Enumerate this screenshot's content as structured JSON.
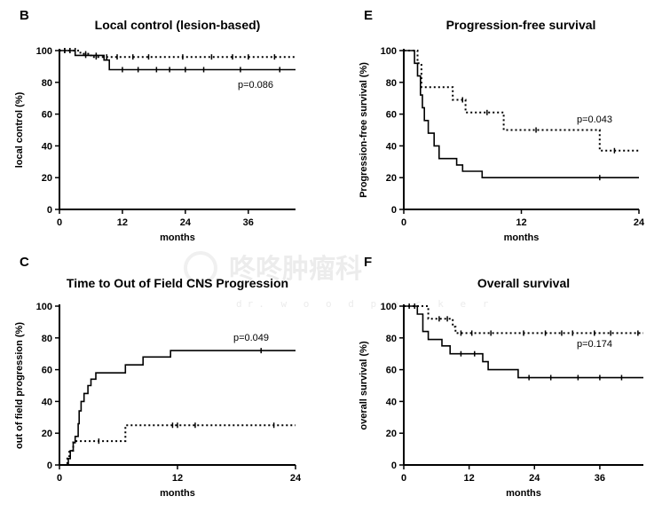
{
  "watermark": {
    "text": "咚咚肿瘤科",
    "sub": "dr. w o o d p e c k e r"
  },
  "chart_data": [
    {
      "type": "line",
      "style": "kaplan-meier",
      "letter": "B",
      "title": "Local control (lesion-based)",
      "xlabel": "months",
      "ylabel": "local control (%)",
      "xlim": [
        0,
        45
      ],
      "ylim": [
        0,
        100
      ],
      "xticks": [
        0,
        12,
        24,
        36
      ],
      "yticks": [
        0,
        20,
        40,
        60,
        80,
        100
      ],
      "pvalue": "p=0.086",
      "series": [
        {
          "dash": "solid",
          "steps": [
            [
              0,
              100
            ],
            [
              3,
              97
            ],
            [
              8.5,
              94
            ],
            [
              9.5,
              88
            ],
            [
              45,
              88
            ]
          ],
          "censors": [
            [
              1,
              100
            ],
            [
              2,
              100
            ],
            [
              5,
              97
            ],
            [
              7,
              97
            ],
            [
              12,
              88
            ],
            [
              15,
              88
            ],
            [
              18.5,
              88
            ],
            [
              21,
              88
            ],
            [
              24,
              88
            ],
            [
              27.5,
              88
            ],
            [
              34.5,
              88
            ],
            [
              42,
              88
            ]
          ]
        },
        {
          "dash": "dotted",
          "steps": [
            [
              0,
              100
            ],
            [
              4,
              98
            ],
            [
              6,
              96
            ],
            [
              45,
              96
            ]
          ],
          "censors": [
            [
              1,
              100
            ],
            [
              2,
              100
            ],
            [
              3,
              100
            ],
            [
              5,
              98
            ],
            [
              7,
              96
            ],
            [
              9,
              96
            ],
            [
              11,
              96
            ],
            [
              14,
              96
            ],
            [
              17,
              96
            ],
            [
              23.5,
              96
            ],
            [
              29,
              96
            ],
            [
              33,
              96
            ],
            [
              36,
              96
            ],
            [
              41,
              96
            ]
          ]
        }
      ]
    },
    {
      "type": "line",
      "style": "kaplan-meier",
      "letter": "E",
      "title": "Progression-free survival",
      "xlabel": "months",
      "ylabel": "Progression-free survival (%)",
      "xlim": [
        0,
        24
      ],
      "ylim": [
        0,
        100
      ],
      "xticks": [
        0,
        12,
        24
      ],
      "yticks": [
        0,
        20,
        40,
        60,
        80,
        100
      ],
      "pvalue": "p=0.043",
      "series": [
        {
          "dash": "solid",
          "steps": [
            [
              0,
              100
            ],
            [
              1.1,
              92
            ],
            [
              1.4,
              84
            ],
            [
              1.7,
              72
            ],
            [
              1.9,
              64
            ],
            [
              2.1,
              56
            ],
            [
              2.5,
              48
            ],
            [
              3.1,
              40
            ],
            [
              3.6,
              32
            ],
            [
              5.4,
              28
            ],
            [
              6,
              24
            ],
            [
              8,
              20
            ],
            [
              24,
              20
            ]
          ],
          "censors": [
            [
              20,
              20
            ]
          ]
        },
        {
          "dash": "dotted",
          "steps": [
            [
              0,
              100
            ],
            [
              1.4,
              92
            ],
            [
              1.8,
              77
            ],
            [
              5,
              69
            ],
            [
              6.3,
              61
            ],
            [
              10.2,
              50
            ],
            [
              20,
              37
            ],
            [
              24,
              37
            ]
          ],
          "censors": [
            [
              6,
              69
            ],
            [
              8.5,
              61
            ],
            [
              13.5,
              50
            ],
            [
              21.5,
              37
            ]
          ]
        }
      ]
    },
    {
      "type": "line",
      "style": "kaplan-meier",
      "letter": "C",
      "title": "Time to Out of Field CNS Progression",
      "xlabel": "months",
      "ylabel": "out of field progression (%)",
      "xlim": [
        0,
        24
      ],
      "ylim": [
        0,
        100
      ],
      "xticks": [
        0,
        12,
        24
      ],
      "yticks": [
        0,
        20,
        40,
        60,
        80,
        100
      ],
      "pvalue": "p=0.049",
      "series": [
        {
          "dash": "solid",
          "steps": [
            [
              0,
              0
            ],
            [
              0.9,
              4
            ],
            [
              1.1,
              9
            ],
            [
              1.4,
              14
            ],
            [
              1.6,
              18
            ],
            [
              1.9,
              26
            ],
            [
              2,
              34
            ],
            [
              2.2,
              40
            ],
            [
              2.5,
              45
            ],
            [
              2.9,
              50
            ],
            [
              3.2,
              54
            ],
            [
              3.7,
              58
            ],
            [
              6.7,
              63
            ],
            [
              8.5,
              68
            ],
            [
              11.3,
              72
            ],
            [
              24,
              72
            ]
          ],
          "censors": [
            [
              20.5,
              72
            ]
          ]
        },
        {
          "dash": "dotted",
          "steps": [
            [
              0,
              0
            ],
            [
              0.8,
              4
            ],
            [
              1,
              9
            ],
            [
              1.4,
              15
            ],
            [
              6.7,
              25
            ],
            [
              24,
              25
            ]
          ],
          "censors": [
            [
              4,
              15
            ],
            [
              11.5,
              25
            ],
            [
              12,
              25
            ],
            [
              13.8,
              25
            ],
            [
              21.8,
              25
            ]
          ]
        }
      ]
    },
    {
      "type": "line",
      "style": "kaplan-meier",
      "letter": "F",
      "title": "Overall survival",
      "xlabel": "months",
      "ylabel": "overall survival (%)",
      "xlim": [
        0,
        44
      ],
      "ylim": [
        0,
        100
      ],
      "xticks": [
        0,
        12,
        24,
        36
      ],
      "yticks": [
        0,
        20,
        40,
        60,
        80,
        100
      ],
      "pvalue": "p=0.174",
      "series": [
        {
          "dash": "solid",
          "steps": [
            [
              0,
              100
            ],
            [
              2.5,
              95
            ],
            [
              3.5,
              84
            ],
            [
              4.5,
              79
            ],
            [
              7,
              75
            ],
            [
              8.5,
              70
            ],
            [
              14.5,
              65
            ],
            [
              15.5,
              60
            ],
            [
              21,
              55
            ],
            [
              44,
              55
            ]
          ],
          "censors": [
            [
              1,
              100
            ],
            [
              10.5,
              70
            ],
            [
              13,
              70
            ],
            [
              23,
              55
            ],
            [
              27,
              55
            ],
            [
              32,
              55
            ],
            [
              36,
              55
            ],
            [
              40,
              55
            ]
          ]
        },
        {
          "dash": "dotted",
          "steps": [
            [
              0,
              100
            ],
            [
              4.5,
              92
            ],
            [
              9,
              87
            ],
            [
              9.5,
              83
            ],
            [
              44,
              83
            ]
          ],
          "censors": [
            [
              2,
              100
            ],
            [
              6.5,
              92
            ],
            [
              8,
              92
            ],
            [
              10.5,
              83
            ],
            [
              12.5,
              83
            ],
            [
              16,
              83
            ],
            [
              22,
              83
            ],
            [
              26,
              83
            ],
            [
              29,
              83
            ],
            [
              31,
              83
            ],
            [
              35,
              83
            ],
            [
              38,
              83
            ],
            [
              43,
              83
            ]
          ]
        }
      ]
    }
  ]
}
